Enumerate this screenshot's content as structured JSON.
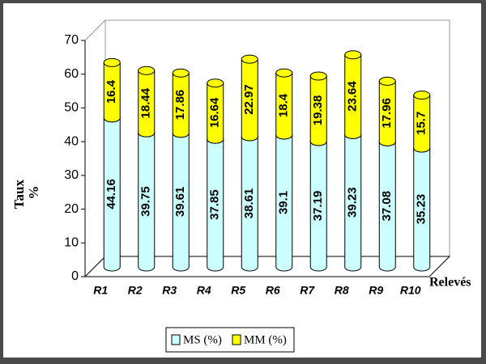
{
  "chart_data": {
    "type": "stacked-cylinder",
    "categories": [
      "R1",
      "R2",
      "R3",
      "R4",
      "R5",
      "R6",
      "R7",
      "R8",
      "R9",
      "R10"
    ],
    "series": [
      {
        "name": "MS (%)",
        "color": "#ccffff",
        "values": [
          44.16,
          39.75,
          39.61,
          37.85,
          38.61,
          39.1,
          37.19,
          39.23,
          37.08,
          35.23
        ]
      },
      {
        "name": "MM (%)",
        "color": "#ffff00",
        "values": [
          16.4,
          18.44,
          17.86,
          16.64,
          22.97,
          18.4,
          19.38,
          23.64,
          17.96,
          15.7
        ]
      }
    ],
    "ylim": [
      0,
      70
    ],
    "yticks": [
      0,
      10,
      20,
      30,
      40,
      50,
      60,
      70
    ],
    "y_label": [
      "Taux",
      "%"
    ],
    "x_label": "Relevés"
  }
}
